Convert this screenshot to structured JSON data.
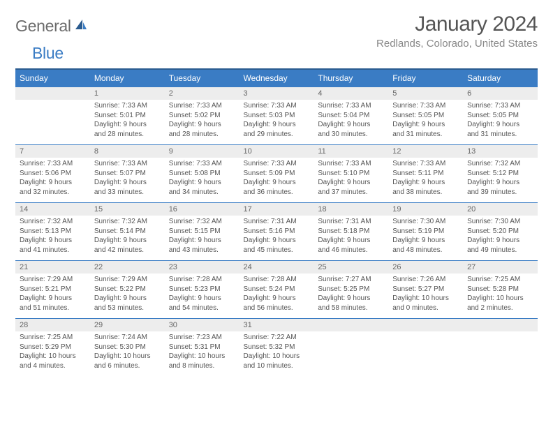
{
  "logo": {
    "word1": "General",
    "word2": "Blue"
  },
  "title": "January 2024",
  "subtitle": "Redlands, Colorado, United States",
  "day_headers": [
    "Sunday",
    "Monday",
    "Tuesday",
    "Wednesday",
    "Thursday",
    "Friday",
    "Saturday"
  ],
  "colors": {
    "header_bg": "#3a7cc4",
    "header_border": "#2b5b8f",
    "daynum_bg": "#ededed",
    "text": "#555555"
  },
  "weeks": [
    [
      null,
      {
        "n": "1",
        "sunrise": "Sunrise: 7:33 AM",
        "sunset": "Sunset: 5:01 PM",
        "d1": "Daylight: 9 hours",
        "d2": "and 28 minutes."
      },
      {
        "n": "2",
        "sunrise": "Sunrise: 7:33 AM",
        "sunset": "Sunset: 5:02 PM",
        "d1": "Daylight: 9 hours",
        "d2": "and 28 minutes."
      },
      {
        "n": "3",
        "sunrise": "Sunrise: 7:33 AM",
        "sunset": "Sunset: 5:03 PM",
        "d1": "Daylight: 9 hours",
        "d2": "and 29 minutes."
      },
      {
        "n": "4",
        "sunrise": "Sunrise: 7:33 AM",
        "sunset": "Sunset: 5:04 PM",
        "d1": "Daylight: 9 hours",
        "d2": "and 30 minutes."
      },
      {
        "n": "5",
        "sunrise": "Sunrise: 7:33 AM",
        "sunset": "Sunset: 5:05 PM",
        "d1": "Daylight: 9 hours",
        "d2": "and 31 minutes."
      },
      {
        "n": "6",
        "sunrise": "Sunrise: 7:33 AM",
        "sunset": "Sunset: 5:05 PM",
        "d1": "Daylight: 9 hours",
        "d2": "and 31 minutes."
      }
    ],
    [
      {
        "n": "7",
        "sunrise": "Sunrise: 7:33 AM",
        "sunset": "Sunset: 5:06 PM",
        "d1": "Daylight: 9 hours",
        "d2": "and 32 minutes."
      },
      {
        "n": "8",
        "sunrise": "Sunrise: 7:33 AM",
        "sunset": "Sunset: 5:07 PM",
        "d1": "Daylight: 9 hours",
        "d2": "and 33 minutes."
      },
      {
        "n": "9",
        "sunrise": "Sunrise: 7:33 AM",
        "sunset": "Sunset: 5:08 PM",
        "d1": "Daylight: 9 hours",
        "d2": "and 34 minutes."
      },
      {
        "n": "10",
        "sunrise": "Sunrise: 7:33 AM",
        "sunset": "Sunset: 5:09 PM",
        "d1": "Daylight: 9 hours",
        "d2": "and 36 minutes."
      },
      {
        "n": "11",
        "sunrise": "Sunrise: 7:33 AM",
        "sunset": "Sunset: 5:10 PM",
        "d1": "Daylight: 9 hours",
        "d2": "and 37 minutes."
      },
      {
        "n": "12",
        "sunrise": "Sunrise: 7:33 AM",
        "sunset": "Sunset: 5:11 PM",
        "d1": "Daylight: 9 hours",
        "d2": "and 38 minutes."
      },
      {
        "n": "13",
        "sunrise": "Sunrise: 7:32 AM",
        "sunset": "Sunset: 5:12 PM",
        "d1": "Daylight: 9 hours",
        "d2": "and 39 minutes."
      }
    ],
    [
      {
        "n": "14",
        "sunrise": "Sunrise: 7:32 AM",
        "sunset": "Sunset: 5:13 PM",
        "d1": "Daylight: 9 hours",
        "d2": "and 41 minutes."
      },
      {
        "n": "15",
        "sunrise": "Sunrise: 7:32 AM",
        "sunset": "Sunset: 5:14 PM",
        "d1": "Daylight: 9 hours",
        "d2": "and 42 minutes."
      },
      {
        "n": "16",
        "sunrise": "Sunrise: 7:32 AM",
        "sunset": "Sunset: 5:15 PM",
        "d1": "Daylight: 9 hours",
        "d2": "and 43 minutes."
      },
      {
        "n": "17",
        "sunrise": "Sunrise: 7:31 AM",
        "sunset": "Sunset: 5:16 PM",
        "d1": "Daylight: 9 hours",
        "d2": "and 45 minutes."
      },
      {
        "n": "18",
        "sunrise": "Sunrise: 7:31 AM",
        "sunset": "Sunset: 5:18 PM",
        "d1": "Daylight: 9 hours",
        "d2": "and 46 minutes."
      },
      {
        "n": "19",
        "sunrise": "Sunrise: 7:30 AM",
        "sunset": "Sunset: 5:19 PM",
        "d1": "Daylight: 9 hours",
        "d2": "and 48 minutes."
      },
      {
        "n": "20",
        "sunrise": "Sunrise: 7:30 AM",
        "sunset": "Sunset: 5:20 PM",
        "d1": "Daylight: 9 hours",
        "d2": "and 49 minutes."
      }
    ],
    [
      {
        "n": "21",
        "sunrise": "Sunrise: 7:29 AM",
        "sunset": "Sunset: 5:21 PM",
        "d1": "Daylight: 9 hours",
        "d2": "and 51 minutes."
      },
      {
        "n": "22",
        "sunrise": "Sunrise: 7:29 AM",
        "sunset": "Sunset: 5:22 PM",
        "d1": "Daylight: 9 hours",
        "d2": "and 53 minutes."
      },
      {
        "n": "23",
        "sunrise": "Sunrise: 7:28 AM",
        "sunset": "Sunset: 5:23 PM",
        "d1": "Daylight: 9 hours",
        "d2": "and 54 minutes."
      },
      {
        "n": "24",
        "sunrise": "Sunrise: 7:28 AM",
        "sunset": "Sunset: 5:24 PM",
        "d1": "Daylight: 9 hours",
        "d2": "and 56 minutes."
      },
      {
        "n": "25",
        "sunrise": "Sunrise: 7:27 AM",
        "sunset": "Sunset: 5:25 PM",
        "d1": "Daylight: 9 hours",
        "d2": "and 58 minutes."
      },
      {
        "n": "26",
        "sunrise": "Sunrise: 7:26 AM",
        "sunset": "Sunset: 5:27 PM",
        "d1": "Daylight: 10 hours",
        "d2": "and 0 minutes."
      },
      {
        "n": "27",
        "sunrise": "Sunrise: 7:25 AM",
        "sunset": "Sunset: 5:28 PM",
        "d1": "Daylight: 10 hours",
        "d2": "and 2 minutes."
      }
    ],
    [
      {
        "n": "28",
        "sunrise": "Sunrise: 7:25 AM",
        "sunset": "Sunset: 5:29 PM",
        "d1": "Daylight: 10 hours",
        "d2": "and 4 minutes."
      },
      {
        "n": "29",
        "sunrise": "Sunrise: 7:24 AM",
        "sunset": "Sunset: 5:30 PM",
        "d1": "Daylight: 10 hours",
        "d2": "and 6 minutes."
      },
      {
        "n": "30",
        "sunrise": "Sunrise: 7:23 AM",
        "sunset": "Sunset: 5:31 PM",
        "d1": "Daylight: 10 hours",
        "d2": "and 8 minutes."
      },
      {
        "n": "31",
        "sunrise": "Sunrise: 7:22 AM",
        "sunset": "Sunset: 5:32 PM",
        "d1": "Daylight: 10 hours",
        "d2": "and 10 minutes."
      },
      null,
      null,
      null
    ]
  ]
}
